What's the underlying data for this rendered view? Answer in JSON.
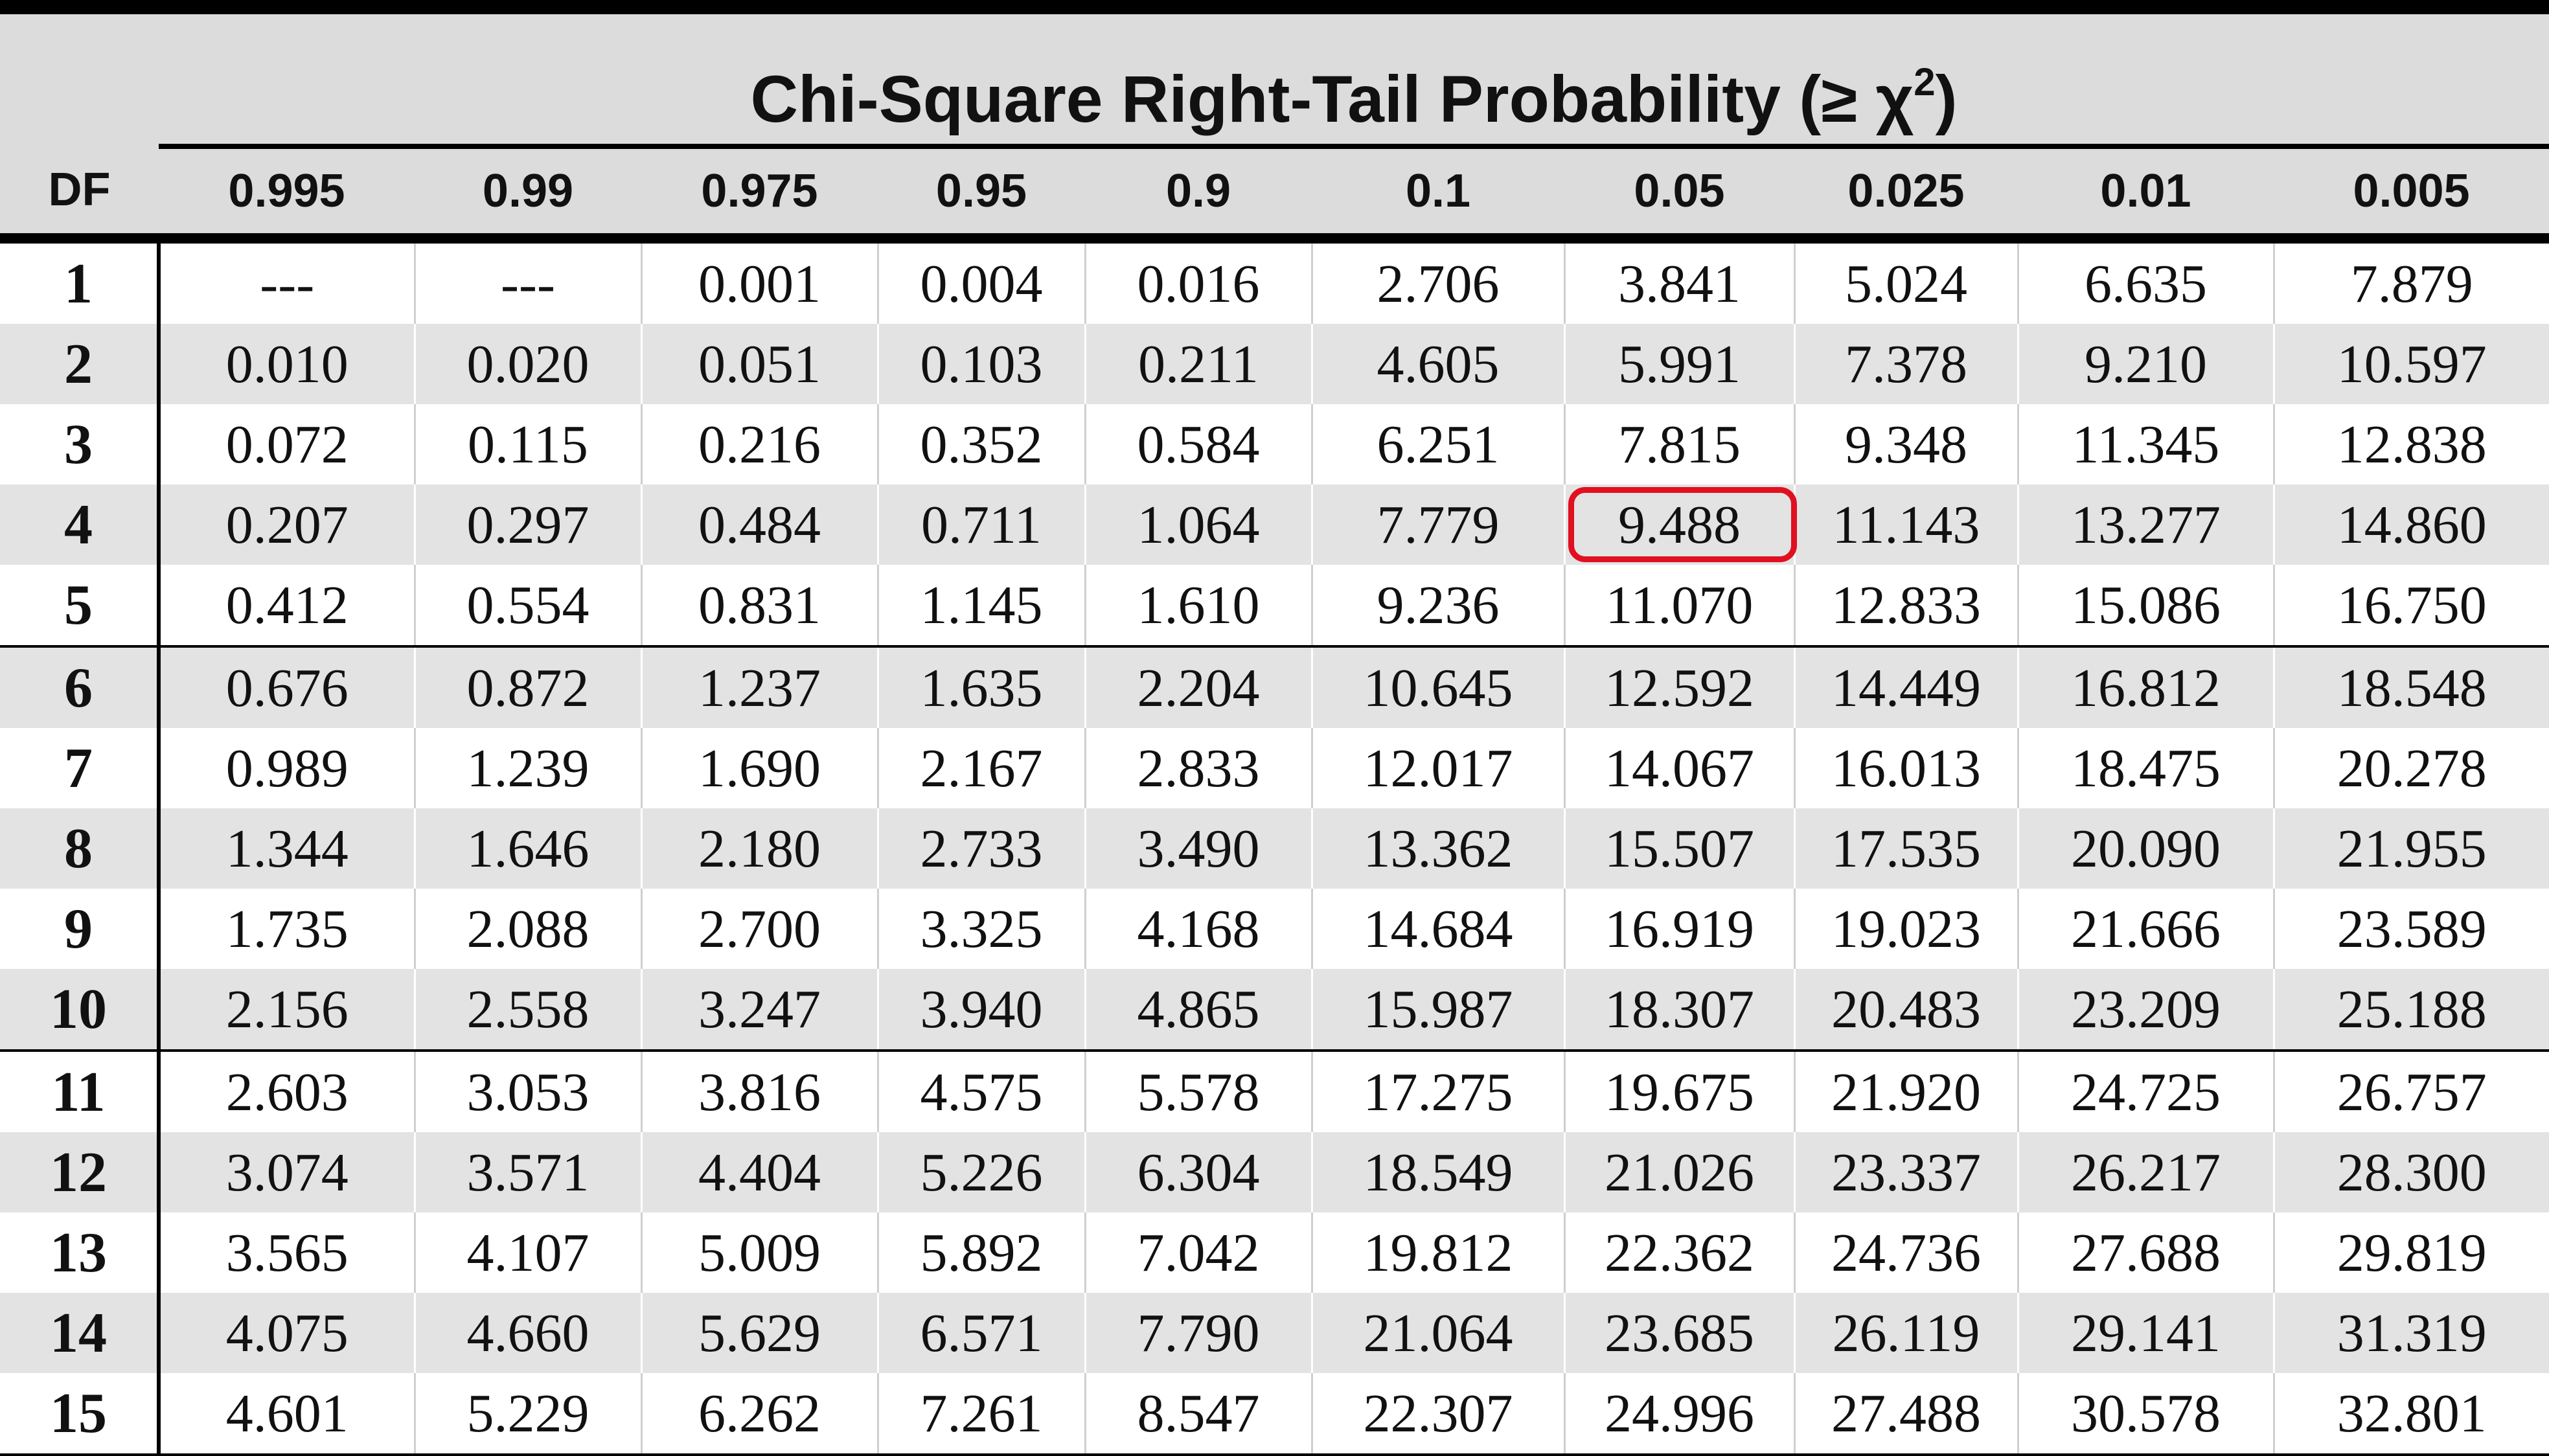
{
  "table": {
    "title_text": "Chi-Square Right-Tail Probability (≥ χ",
    "title_sup": "2",
    "title_close": ")",
    "df_header": "DF",
    "columns": [
      "0.995",
      "0.99",
      "0.975",
      "0.95",
      "0.9",
      "0.1",
      "0.05",
      "0.025",
      "0.01",
      "0.005"
    ],
    "rows": [
      {
        "df": "1",
        "values": [
          "---",
          "---",
          "0.001",
          "0.004",
          "0.016",
          "2.706",
          "3.841",
          "5.024",
          "6.635",
          "7.879"
        ]
      },
      {
        "df": "2",
        "values": [
          "0.010",
          "0.020",
          "0.051",
          "0.103",
          "0.211",
          "4.605",
          "5.991",
          "7.378",
          "9.210",
          "10.597"
        ]
      },
      {
        "df": "3",
        "values": [
          "0.072",
          "0.115",
          "0.216",
          "0.352",
          "0.584",
          "6.251",
          "7.815",
          "9.348",
          "11.345",
          "12.838"
        ]
      },
      {
        "df": "4",
        "values": [
          "0.207",
          "0.297",
          "0.484",
          "0.711",
          "1.064",
          "7.779",
          "9.488",
          "11.143",
          "13.277",
          "14.860"
        ]
      },
      {
        "df": "5",
        "values": [
          "0.412",
          "0.554",
          "0.831",
          "1.145",
          "1.610",
          "9.236",
          "11.070",
          "12.833",
          "15.086",
          "16.750"
        ]
      },
      {
        "df": "6",
        "values": [
          "0.676",
          "0.872",
          "1.237",
          "1.635",
          "2.204",
          "10.645",
          "12.592",
          "14.449",
          "16.812",
          "18.548"
        ]
      },
      {
        "df": "7",
        "values": [
          "0.989",
          "1.239",
          "1.690",
          "2.167",
          "2.833",
          "12.017",
          "14.067",
          "16.013",
          "18.475",
          "20.278"
        ]
      },
      {
        "df": "8",
        "values": [
          "1.344",
          "1.646",
          "2.180",
          "2.733",
          "3.490",
          "13.362",
          "15.507",
          "17.535",
          "20.090",
          "21.955"
        ]
      },
      {
        "df": "9",
        "values": [
          "1.735",
          "2.088",
          "2.700",
          "3.325",
          "4.168",
          "14.684",
          "16.919",
          "19.023",
          "21.666",
          "23.589"
        ]
      },
      {
        "df": "10",
        "values": [
          "2.156",
          "2.558",
          "3.247",
          "3.940",
          "4.865",
          "15.987",
          "18.307",
          "20.483",
          "23.209",
          "25.188"
        ]
      },
      {
        "df": "11",
        "values": [
          "2.603",
          "3.053",
          "3.816",
          "4.575",
          "5.578",
          "17.275",
          "19.675",
          "21.920",
          "24.725",
          "26.757"
        ]
      },
      {
        "df": "12",
        "values": [
          "3.074",
          "3.571",
          "4.404",
          "5.226",
          "6.304",
          "18.549",
          "21.026",
          "23.337",
          "26.217",
          "28.300"
        ]
      },
      {
        "df": "13",
        "values": [
          "3.565",
          "4.107",
          "5.009",
          "5.892",
          "7.042",
          "19.812",
          "22.362",
          "24.736",
          "27.688",
          "29.819"
        ]
      },
      {
        "df": "14",
        "values": [
          "4.075",
          "4.660",
          "5.629",
          "6.571",
          "7.790",
          "21.064",
          "23.685",
          "26.119",
          "29.141",
          "31.319"
        ]
      },
      {
        "df": "15",
        "values": [
          "4.601",
          "5.229",
          "6.262",
          "7.261",
          "8.547",
          "22.307",
          "24.996",
          "27.488",
          "30.578",
          "32.801"
        ]
      }
    ],
    "highlight": {
      "df": "4",
      "column": "0.05",
      "value": "9.488",
      "color": "#e01020"
    }
  }
}
